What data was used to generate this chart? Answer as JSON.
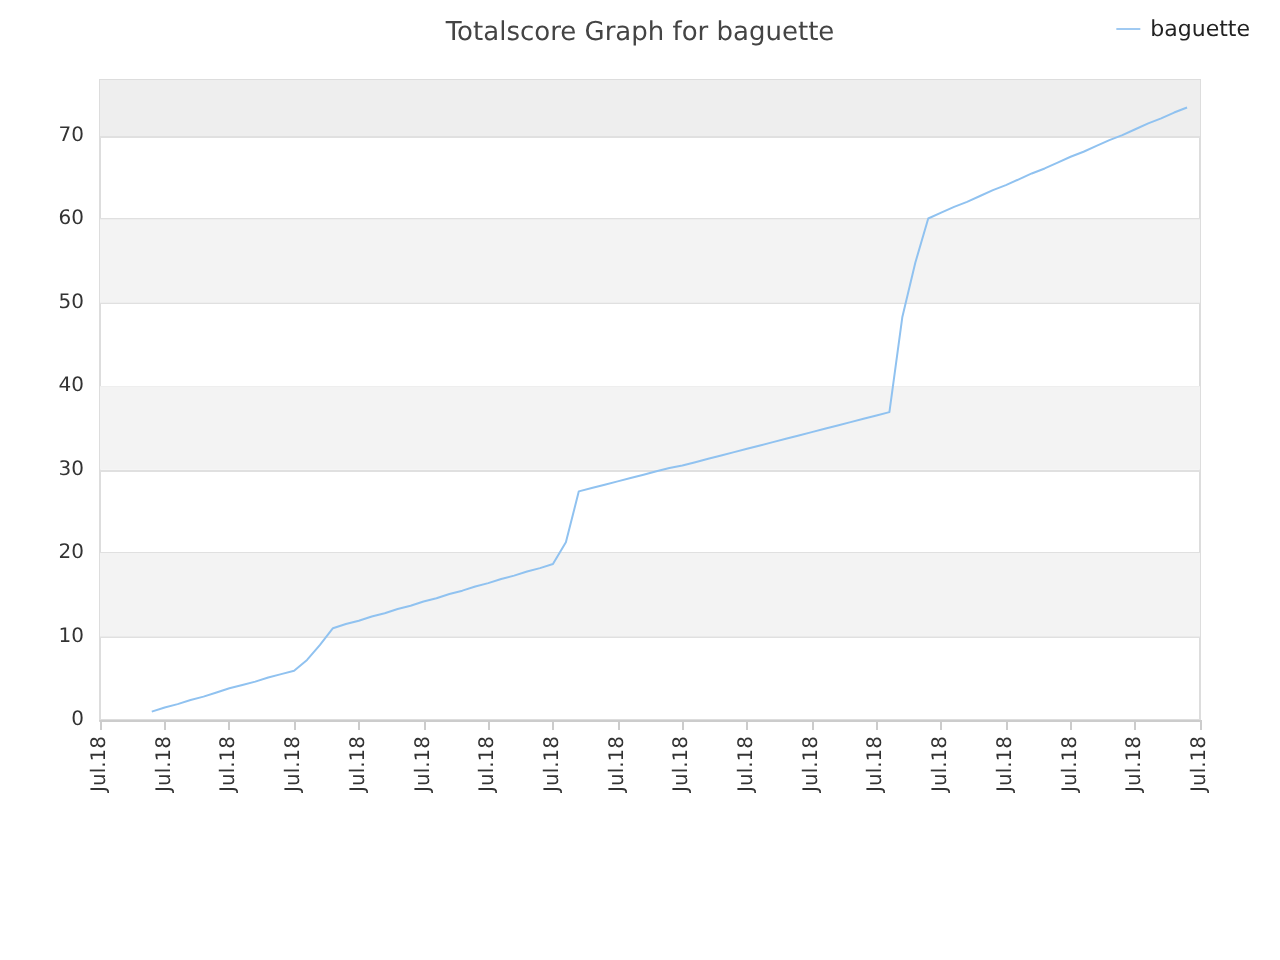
{
  "chart_data": {
    "type": "line",
    "title": "Totalscore Graph for baguette",
    "categories": [
      "Jul.18",
      null,
      null,
      null,
      null,
      "Jul.18",
      null,
      null,
      null,
      null,
      "Jul.18",
      null,
      null,
      null,
      null,
      "Jul.18",
      null,
      null,
      null,
      null,
      "Jul.18",
      null,
      null,
      null,
      null,
      "Jul.18",
      null,
      null,
      null,
      null,
      "Jul.18",
      null,
      null,
      null,
      null,
      "Jul.18",
      null,
      null,
      null,
      null,
      "Jul.18",
      null,
      null,
      null,
      null,
      "Jul.18",
      null,
      null,
      null,
      null,
      "Jul.18",
      null,
      null,
      null,
      null,
      "Jul.18",
      null,
      null,
      null,
      null,
      "Jul.18",
      null,
      null,
      null,
      null,
      "Jul.18",
      null,
      null,
      null,
      null,
      "Jul.18",
      null,
      null,
      null,
      null,
      "Jul.18",
      null,
      null,
      null,
      null,
      "Jul.18",
      null,
      null,
      null,
      null,
      "Jul.18"
    ],
    "series": [
      {
        "name": "baguette",
        "color": "#90c2f0",
        "values": [
          null,
          null,
          null,
          null,
          1.0,
          1.5,
          1.9,
          2.4,
          2.8,
          3.3,
          3.8,
          4.2,
          4.6,
          5.1,
          5.5,
          5.9,
          7.2,
          9.0,
          11.0,
          11.5,
          11.9,
          12.4,
          12.8,
          13.3,
          13.7,
          14.2,
          14.6,
          15.1,
          15.5,
          16.0,
          16.4,
          16.9,
          17.3,
          17.8,
          18.2,
          18.7,
          21.3,
          27.4,
          27.8,
          28.2,
          28.6,
          29.0,
          29.4,
          29.8,
          30.2,
          30.5,
          30.9,
          31.3,
          31.7,
          32.1,
          32.5,
          32.9,
          33.3,
          33.7,
          34.1,
          34.5,
          34.9,
          35.3,
          35.7,
          36.1,
          36.5,
          36.9,
          48.3,
          54.8,
          60.1,
          60.8,
          61.5,
          62.1,
          62.8,
          63.5,
          64.1,
          64.8,
          65.5,
          66.1,
          66.8,
          67.5,
          68.1,
          68.8,
          69.5,
          70.1,
          70.8,
          71.5,
          72.1,
          72.8,
          73.4,
          null
        ]
      }
    ],
    "ylim": [
      0,
      76.7
    ],
    "yticks": [
      0,
      10,
      20,
      30,
      40,
      50,
      60,
      70
    ],
    "bands": [
      {
        "axis": "y",
        "from": 10,
        "to": 20,
        "color": "#f3f3f3"
      },
      {
        "axis": "y",
        "from": 30,
        "to": 40,
        "color": "#f3f3f3"
      },
      {
        "axis": "y",
        "from": 50,
        "to": 60,
        "color": "#f3f3f3"
      },
      {
        "axis": "y",
        "from": 70,
        "to": 76.7,
        "color": "#eeeeee"
      }
    ],
    "grid": "y",
    "legend": "top right",
    "marker": "none",
    "line_style": "solid"
  }
}
